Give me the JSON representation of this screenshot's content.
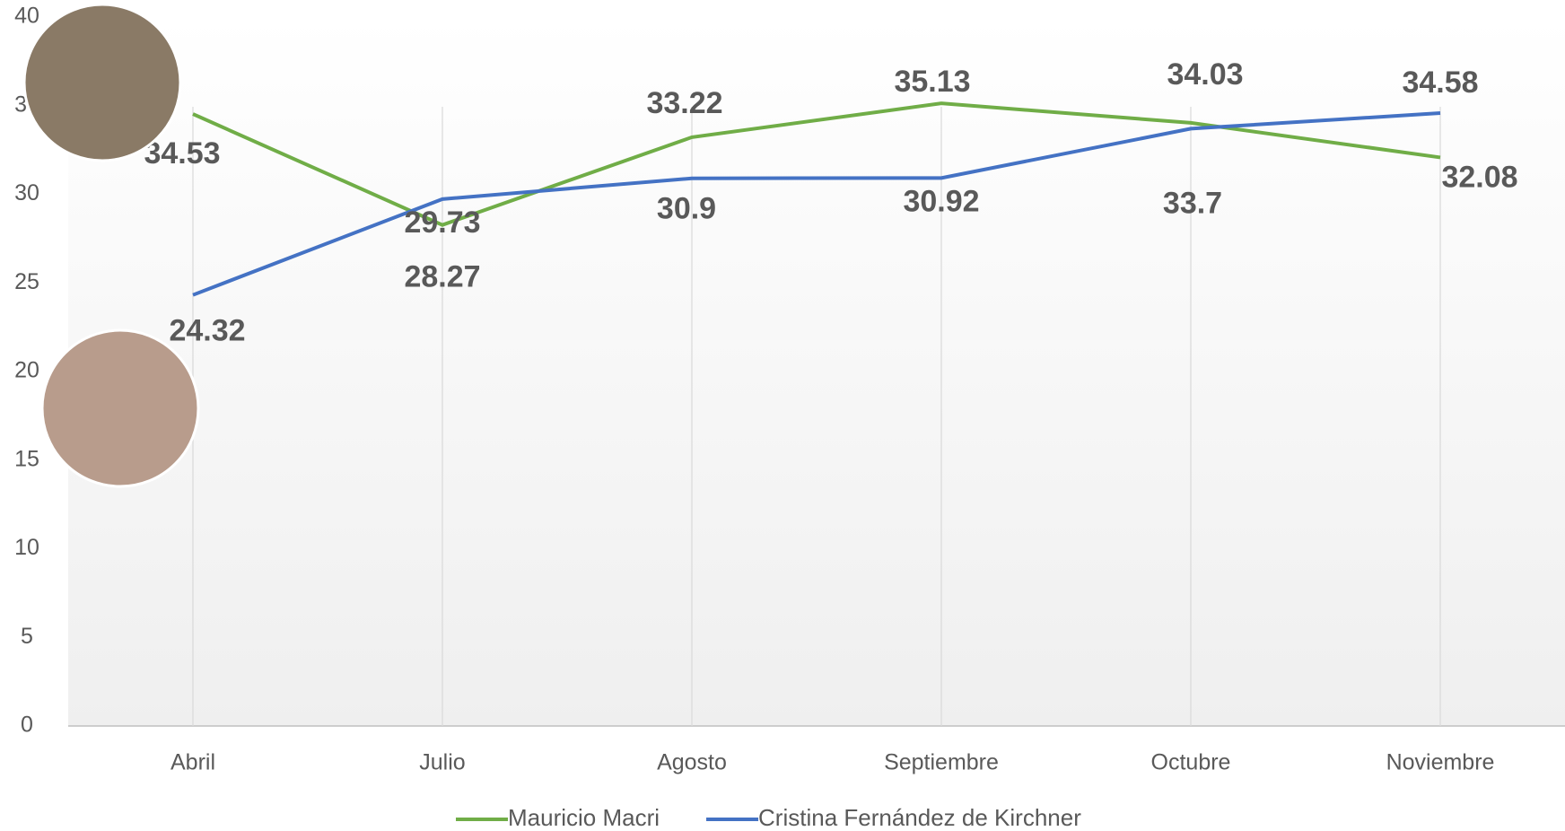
{
  "chart_data": {
    "type": "line",
    "categories": [
      "Abril",
      "Julio",
      "Agosto",
      "Septiembre",
      "Octubre",
      "Noviembre"
    ],
    "series": [
      {
        "name": "Mauricio Macri",
        "color": "#70ad47",
        "values": [
          34.53,
          28.27,
          33.22,
          35.13,
          34.03,
          32.08
        ]
      },
      {
        "name": "Cristina Fernández de Kirchner",
        "color": "#4472c4",
        "values": [
          24.32,
          29.73,
          30.9,
          30.92,
          33.7,
          34.58
        ]
      }
    ],
    "ylim": [
      0,
      40
    ],
    "yticks": [
      0,
      5,
      10,
      15,
      20,
      25,
      30,
      35,
      40
    ],
    "grid": true,
    "legend": "bottom",
    "data_labels": true
  }
}
